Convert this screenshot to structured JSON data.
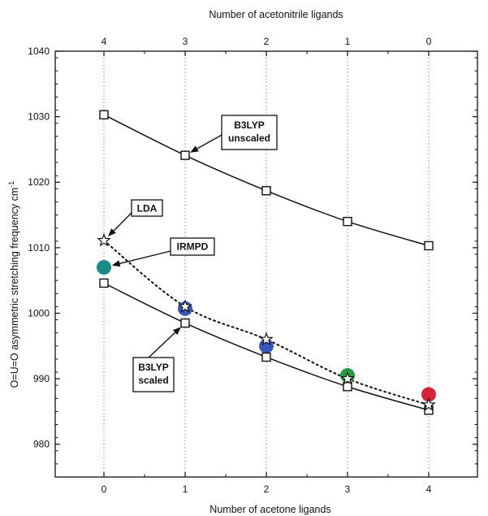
{
  "chart_data": {
    "type": "line",
    "title": "",
    "xlabel": "Number of acetone ligands",
    "x2label": "Number of acetonitrile ligands",
    "ylabel": "O=U=O asymmetric stretching frequency cm",
    "ylabel_superscript": "-1",
    "x": [
      0,
      1,
      2,
      3,
      4
    ],
    "x_ticks": [
      "0",
      "1",
      "2",
      "3",
      "4"
    ],
    "x2_ticks": [
      "4",
      "3",
      "2",
      "1",
      "0"
    ],
    "xlim": [
      -0.6,
      4.6
    ],
    "ylim": [
      975,
      1040
    ],
    "y_ticks": [
      "980",
      "990",
      "1000",
      "1010",
      "1020",
      "1030",
      "1040"
    ],
    "grid": "vertical dotted",
    "series": [
      {
        "name": "B3LYP unscaled",
        "values": [
          1030.3,
          1024.1,
          1018.7,
          1014.0,
          1010.3
        ],
        "marker": "open-square",
        "line": "solid"
      },
      {
        "name": "LDA",
        "values": [
          1011.1,
          1001.0,
          996.0,
          990.0,
          986.0
        ],
        "marker": "star",
        "line": "dotted"
      },
      {
        "name": "IRMPD",
        "values": [
          1007.0,
          1000.7,
          995.0,
          990.5,
          987.6
        ],
        "marker": "filled-circle",
        "colors": [
          "#1a8a82",
          "#3b56b8",
          "#3b56b8",
          "#2a9a3c",
          "#d8213a"
        ],
        "line": "solid"
      },
      {
        "name": "B3LYP scaled",
        "values": [
          1004.6,
          998.5,
          993.3,
          988.8,
          985.2
        ],
        "marker": "open-square",
        "line": "solid"
      }
    ],
    "annotations": [
      {
        "lines": [
          "B3LYP",
          "unscaled"
        ]
      },
      {
        "lines": [
          "LDA"
        ]
      },
      {
        "lines": [
          "IRMPD"
        ]
      },
      {
        "lines": [
          "B3LYP",
          "scaled"
        ]
      }
    ]
  }
}
